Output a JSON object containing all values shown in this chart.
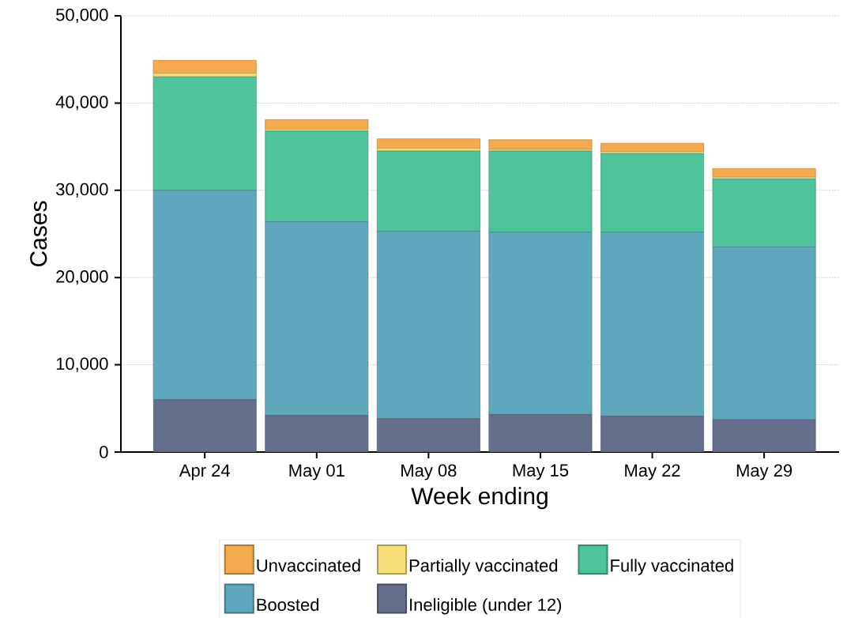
{
  "chart_data": {
    "type": "bar",
    "stacked": true,
    "xlabel": "Week ending",
    "ylabel": "Cases",
    "categories": [
      "Apr 24",
      "May 01",
      "May 08",
      "May 15",
      "May 22",
      "May 29"
    ],
    "series": [
      {
        "name": "Ineligible (under 12)",
        "color": "#646f8c",
        "values": [
          6000,
          4200,
          3800,
          4300,
          4100,
          3700
        ]
      },
      {
        "name": "Boosted",
        "color": "#5fa7bd",
        "values": [
          24000,
          22200,
          21500,
          20900,
          21100,
          19800
        ]
      },
      {
        "name": "Fully vaccinated",
        "color": "#4fc39b",
        "values": [
          13000,
          10400,
          9200,
          9300,
          9000,
          7800
        ]
      },
      {
        "name": "Partially vaccinated",
        "color": "#f8df7a",
        "values": [
          400,
          200,
          300,
          200,
          200,
          200
        ]
      },
      {
        "name": "Unvaccinated",
        "color": "#f4aa4f",
        "values": [
          1500,
          1100,
          1100,
          1100,
          1000,
          1000
        ]
      }
    ],
    "ylim": [
      0,
      50000
    ],
    "yticks": [
      {
        "value": 0,
        "label": "0"
      },
      {
        "value": 10000,
        "label": "10,000"
      },
      {
        "value": 20000,
        "label": "20,000"
      },
      {
        "value": 30000,
        "label": "30,000"
      },
      {
        "value": 40000,
        "label": "40,000"
      },
      {
        "value": 50000,
        "label": "50,000"
      }
    ],
    "grid": "y",
    "legend": "bottom"
  }
}
